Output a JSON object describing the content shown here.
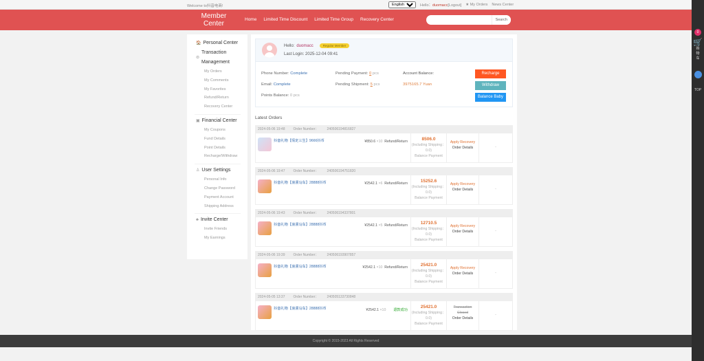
{
  "topbar": {
    "welcome": "Welcome to抖音电商!",
    "language": "English",
    "hello": "Hello：",
    "username": "duomacc",
    "logout": "[Logout]",
    "my_orders": "★ My Orders",
    "news": "News Center"
  },
  "header": {
    "logo_line1": "Member",
    "logo_line2": "Center",
    "nav": [
      "Home",
      "Limited Time Discount",
      "Limited Time Group",
      "Recovery Center"
    ],
    "search_placeholder": "",
    "search_button": "Search"
  },
  "sidebar": {
    "groups": [
      {
        "title": "Personal Center",
        "icon": "home-icon",
        "items": []
      },
      {
        "title": "Transaction Management",
        "icon": "transaction-icon",
        "items": [
          "My Orders",
          "My Comments",
          "My Favorites",
          "Refund/Return",
          "Recovery Center"
        ]
      },
      {
        "title": "Financial Center",
        "icon": "finance-icon",
        "items": [
          "My Coupons",
          "Fund Details",
          "Point Details",
          "Recharge/Withdraw"
        ]
      },
      {
        "title": "User Settings",
        "icon": "user-settings-icon",
        "items": [
          "Personal Info",
          "Change Password",
          "Payment Account",
          "Shipping Address"
        ]
      },
      {
        "title": "Invite Center",
        "icon": "invite-icon",
        "items": [
          "Invite Friends",
          "My Earnings"
        ]
      }
    ]
  },
  "profile": {
    "hello": "Hello:",
    "username": "duomacc",
    "level": "Regular Member",
    "last_login_label": "Last Login:",
    "last_login": "2025-12-04 09:41",
    "phone_label": "Phone Number:",
    "phone": "Complete",
    "email_label": "Email:",
    "email": "Complete",
    "points_label": "Points Balance:",
    "points": "0 pcs",
    "pending_payment_label": "Pending Payment:",
    "pending_payment": "0",
    "pending_shipment_label": "Pending Shipment:",
    "pending_shipment": "5",
    "pcs": "pcs",
    "balance_label": "Account Balance:",
    "balance": "3975165.7 Yuan",
    "recharge": "Recharge",
    "withdraw": "Withdraw",
    "balance_baby": "Balance Baby"
  },
  "orders_title": "Latest Orders",
  "orders": [
    {
      "date": "2024-05-06 19:48",
      "number_label": "Order Number：",
      "number": "240506194816827",
      "product": "抖音礼物【情定三生】9666抖币",
      "price": "¥850.6",
      "qty": "×10",
      "status": "Refund/Return",
      "total": "8506.0",
      "shipping": "(Including Shipping：0.0)",
      "payment": "Balance Payment",
      "action": "Apply Recovery",
      "details": "Order Details",
      "extra": "-"
    },
    {
      "date": "2024-05-06 19:47",
      "number_label": "Order Number：",
      "number": "240506194751820",
      "product": "抖音礼物【浪漫马车】28888抖币",
      "price": "¥2542.1",
      "qty": "×6",
      "status": "Refund/Return",
      "total": "15252.6",
      "shipping": "(Including Shipping：0.0)",
      "payment": "Balance Payment",
      "action": "Apply Recovery",
      "details": "Order Details",
      "extra": "-"
    },
    {
      "date": "2024-05-06 19:43",
      "number_label": "Order Number：",
      "number": "240506194337801",
      "product": "抖音礼物【浪漫马车】28888抖币",
      "price": "¥2542.1",
      "qty": "×5",
      "status": "Refund/Return",
      "total": "12710.5",
      "shipping": "(Including Shipping：0.0)",
      "payment": "Balance Payment",
      "action": "Apply Recovery",
      "details": "Order Details",
      "extra": "-"
    },
    {
      "date": "2024-05-06 19:39",
      "number_label": "Order Number：",
      "number": "240506193907857",
      "product": "抖音礼物【浪漫马车】28888抖币",
      "price": "¥2542.1",
      "qty": "×10",
      "status": "Refund/Return",
      "total": "25421.0",
      "shipping": "(Including Shipping：0.0)",
      "payment": "Balance Payment",
      "action": "Apply Recovery",
      "details": "Order Details",
      "extra": "-"
    },
    {
      "date": "2024-05-05 13:37",
      "number_label": "Order Number：",
      "number": "240505133730848",
      "product": "抖音礼物【浪漫马车】28888抖币",
      "price": "¥2542.1",
      "qty": "×10",
      "status": "退款成功",
      "total": "25421.0",
      "shipping": "(Including Shipping：0.0)",
      "payment": "Balance Payment",
      "action": "Transaction Closed",
      "details": "Order Details",
      "extra": "-"
    }
  ],
  "footer": "Copyright © 2015-2023 All Rights Reserved",
  "rightbar": {
    "cart_count": "0",
    "cart_label": "购物车",
    "top": "TOP"
  },
  "colors": {
    "brand": "#e05252",
    "accent": "#e07030",
    "recharge": "#ff5722",
    "withdraw": "#5fb4bd",
    "balance_baby": "#2196f3"
  }
}
